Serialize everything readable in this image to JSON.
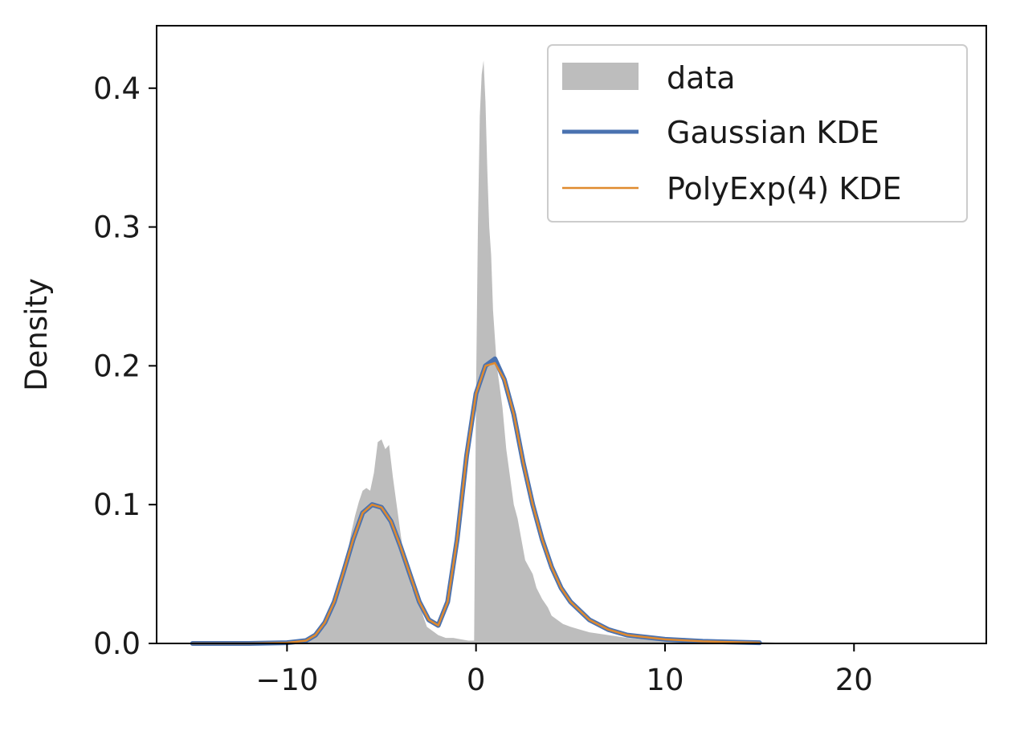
{
  "chart_data": {
    "type": "line",
    "title": "",
    "xlabel": "",
    "ylabel": "Density",
    "xlim": [
      -16.9,
      27.0
    ],
    "ylim": [
      0,
      0.445
    ],
    "xticks": [
      -10,
      0,
      10,
      20
    ],
    "xtick_labels": [
      "−10",
      "0",
      "10",
      "20"
    ],
    "yticks": [
      0.0,
      0.1,
      0.2,
      0.3,
      0.4
    ],
    "ytick_labels": [
      "0.0",
      "0.1",
      "0.2",
      "0.3",
      "0.4"
    ],
    "grid": false,
    "legend_position": "top-right",
    "histogram": {
      "name": "data",
      "color": "#bdbdbd",
      "x": [
        -15.0,
        -12.0,
        -9.5,
        -9.0,
        -8.5,
        -8.0,
        -7.6,
        -7.2,
        -7.0,
        -6.8,
        -6.6,
        -6.4,
        -6.2,
        -6.0,
        -5.8,
        -5.6,
        -5.4,
        -5.2,
        -5.0,
        -4.8,
        -4.6,
        -4.4,
        -4.2,
        -4.0,
        -3.8,
        -3.6,
        -3.4,
        -3.2,
        -3.0,
        -2.8,
        -2.6,
        -2.4,
        -2.2,
        -2.0,
        -1.6,
        -1.2,
        -0.8,
        -0.4,
        -0.1,
        0.0,
        0.1,
        0.2,
        0.3,
        0.4,
        0.5,
        0.6,
        0.7,
        0.8,
        0.9,
        1.0,
        1.1,
        1.2,
        1.4,
        1.6,
        1.8,
        2.0,
        2.2,
        2.4,
        2.6,
        2.8,
        3.0,
        3.2,
        3.5,
        3.8,
        4.0,
        4.3,
        4.6,
        5.0,
        5.5,
        6.0,
        7.0,
        8.0,
        9.0,
        10.0,
        11.0,
        12.0,
        13.0,
        14.0,
        15.0,
        16.0,
        18.0,
        20.0,
        22.0,
        24.0,
        25.0
      ],
      "density": [
        0.0005,
        0.0005,
        0.001,
        0.002,
        0.006,
        0.012,
        0.025,
        0.04,
        0.05,
        0.065,
        0.08,
        0.092,
        0.102,
        0.11,
        0.112,
        0.11,
        0.123,
        0.145,
        0.147,
        0.14,
        0.143,
        0.12,
        0.1,
        0.08,
        0.06,
        0.05,
        0.04,
        0.035,
        0.03,
        0.02,
        0.012,
        0.01,
        0.008,
        0.006,
        0.004,
        0.004,
        0.003,
        0.002,
        0.002,
        0.18,
        0.3,
        0.38,
        0.41,
        0.42,
        0.39,
        0.34,
        0.3,
        0.28,
        0.24,
        0.22,
        0.2,
        0.19,
        0.17,
        0.14,
        0.12,
        0.1,
        0.09,
        0.075,
        0.06,
        0.055,
        0.05,
        0.04,
        0.032,
        0.026,
        0.02,
        0.017,
        0.014,
        0.012,
        0.01,
        0.008,
        0.006,
        0.004,
        0.003,
        0.003,
        0.004,
        0.002,
        0.0015,
        0.001,
        0.001,
        0.0005,
        0.0004,
        0.0003,
        0.0003,
        0.0002,
        0.0002
      ]
    },
    "series": [
      {
        "name": "Gaussian KDE",
        "color": "#4a72b0",
        "x": [
          -15,
          -12,
          -10,
          -9,
          -8.5,
          -8,
          -7.5,
          -7,
          -6.5,
          -6,
          -5.5,
          -5,
          -4.5,
          -4,
          -3.5,
          -3,
          -2.5,
          -2,
          -1.5,
          -1,
          -0.5,
          0,
          0.5,
          1,
          1.5,
          2,
          2.5,
          3,
          3.5,
          4,
          4.5,
          5,
          6,
          7,
          8,
          10,
          12,
          15
        ],
        "y": [
          0,
          0,
          0.0005,
          0.002,
          0.006,
          0.015,
          0.03,
          0.052,
          0.075,
          0.094,
          0.1,
          0.098,
          0.088,
          0.07,
          0.05,
          0.03,
          0.017,
          0.013,
          0.03,
          0.075,
          0.135,
          0.18,
          0.2,
          0.205,
          0.19,
          0.165,
          0.13,
          0.1,
          0.075,
          0.055,
          0.04,
          0.03,
          0.017,
          0.01,
          0.006,
          0.003,
          0.0015,
          0.0005
        ]
      },
      {
        "name": "PolyExp(4) KDE",
        "color": "#e08a2e",
        "x": [
          -15,
          -12,
          -10,
          -9,
          -8.5,
          -8,
          -7.5,
          -7,
          -6.5,
          -6,
          -5.5,
          -5,
          -4.5,
          -4,
          -3.5,
          -3,
          -2.5,
          -2,
          -1.5,
          -1,
          -0.5,
          0,
          0.5,
          1,
          1.5,
          2,
          2.5,
          3,
          3.5,
          4,
          4.5,
          5,
          6,
          7,
          8,
          10,
          12,
          15
        ],
        "y": [
          0,
          0,
          0.0005,
          0.002,
          0.006,
          0.015,
          0.03,
          0.052,
          0.075,
          0.094,
          0.1,
          0.098,
          0.088,
          0.07,
          0.05,
          0.03,
          0.017,
          0.013,
          0.03,
          0.075,
          0.135,
          0.18,
          0.2,
          0.202,
          0.19,
          0.165,
          0.13,
          0.1,
          0.075,
          0.055,
          0.04,
          0.03,
          0.017,
          0.01,
          0.006,
          0.003,
          0.0015,
          0.0005
        ]
      }
    ],
    "legend": [
      {
        "label": "data",
        "kind": "patch",
        "color": "#bdbdbd"
      },
      {
        "label": "Gaussian KDE",
        "kind": "line",
        "color": "#4a72b0"
      },
      {
        "label": "PolyExp(4) KDE",
        "kind": "line",
        "color": "#e08a2e"
      }
    ]
  }
}
